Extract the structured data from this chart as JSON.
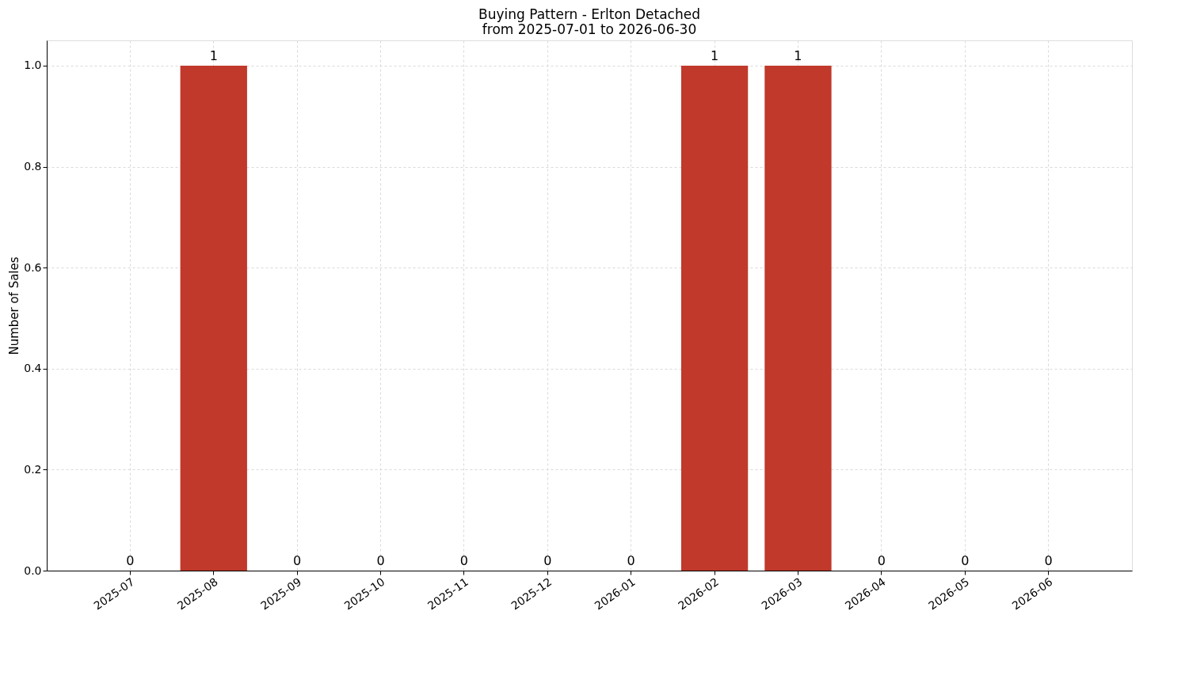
{
  "chart_data": {
    "type": "bar",
    "title": "Buying Pattern - Erlton Detached",
    "subtitle": "from 2025-07-01 to 2026-06-30",
    "ylabel": "Number of Sales",
    "categories": [
      "2025-07",
      "2025-08",
      "2025-09",
      "2025-10",
      "2025-11",
      "2025-12",
      "2026-01",
      "2026-02",
      "2026-03",
      "2026-04",
      "2026-05",
      "2026-06"
    ],
    "values": [
      0,
      1,
      0,
      0,
      0,
      0,
      0,
      1,
      1,
      0,
      0,
      0
    ],
    "color": "#c0392b",
    "ylim": [
      0,
      1.05
    ],
    "yticks": [
      {
        "value": 0,
        "label": "0.0"
      },
      {
        "value": 0.2,
        "label": "0.2"
      },
      {
        "value": 0.4,
        "label": "0.4"
      },
      {
        "value": 0.6,
        "label": "0.6"
      },
      {
        "value": 0.8,
        "label": "0.8"
      },
      {
        "value": 1.0,
        "label": "1.0"
      }
    ],
    "grid": true,
    "data_labels": true
  }
}
